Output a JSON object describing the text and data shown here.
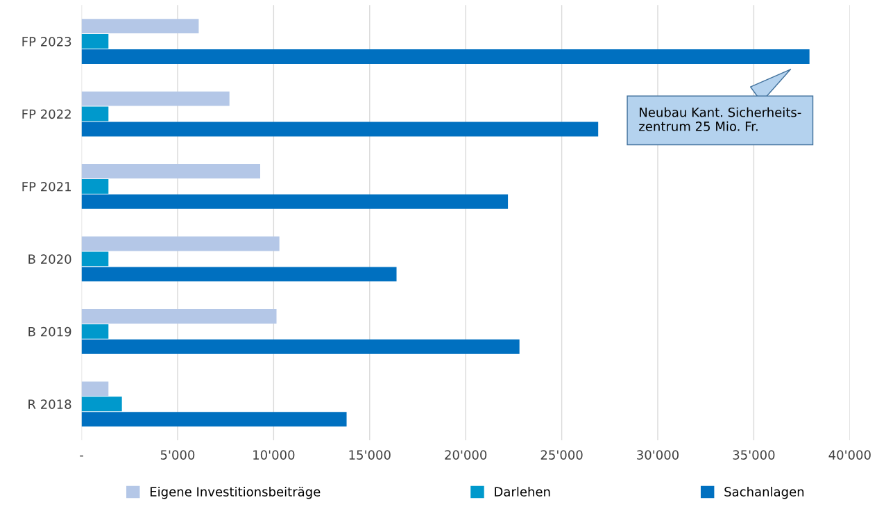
{
  "chart_data": {
    "type": "bar",
    "orientation": "horizontal",
    "categories": [
      "FP 2023",
      "FP 2022",
      "FP 2021",
      "B 2020",
      "B 2019",
      "R 2018"
    ],
    "series": [
      {
        "name": "Eigene Investitionsbeiträge",
        "color": "#b4c7e7",
        "values": [
          6100,
          7700,
          9300,
          10300,
          10150,
          1400
        ]
      },
      {
        "name": "Darlehen",
        "color": "#0099cc",
        "values": [
          1400,
          1400,
          1400,
          1400,
          1400,
          2100
        ]
      },
      {
        "name": "Sachanlagen",
        "color": "#0070c0",
        "values": [
          37900,
          26900,
          22200,
          16400,
          22800,
          13800
        ]
      }
    ],
    "xlim": [
      0,
      40000
    ],
    "xticks": [
      {
        "value": 0,
        "label": "-"
      },
      {
        "value": 5000,
        "label": "5'000"
      },
      {
        "value": 10000,
        "label": "10'000"
      },
      {
        "value": 15000,
        "label": "15'000"
      },
      {
        "value": 20000,
        "label": "20'000"
      },
      {
        "value": 25000,
        "label": "25'000"
      },
      {
        "value": 30000,
        "label": "30'000"
      },
      {
        "value": 35000,
        "label": "35'000"
      },
      {
        "value": 40000,
        "label": "40'000"
      }
    ],
    "grid": "x",
    "legend": "bottom",
    "annotations": [
      "Neubau Kant. Sicherheits-\nzentrum 25 Mio. Fr."
    ]
  }
}
